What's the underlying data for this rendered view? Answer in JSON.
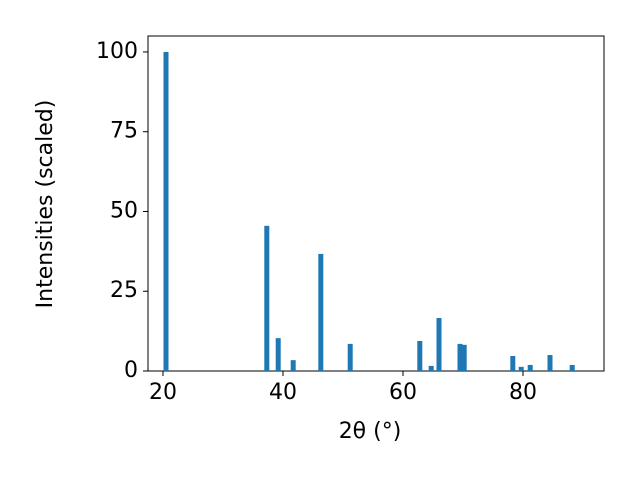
{
  "chart_data": {
    "type": "bar",
    "x_label": "2θ (°)",
    "y_label": "Intensities (scaled)",
    "x": [
      20.5,
      37.3,
      39.2,
      41.7,
      46.3,
      51.2,
      62.8,
      64.7,
      66.0,
      69.5,
      70.2,
      78.3,
      79.7,
      81.2,
      84.5,
      88.2
    ],
    "values": [
      100,
      45.5,
      10.3,
      3.4,
      36.7,
      8.5,
      9.4,
      1.6,
      16.6,
      8.5,
      8.2,
      4.7,
      1.3,
      1.9,
      5.0,
      1.9
    ],
    "color": "#1f77b4",
    "xlim": [
      17.5,
      93.5
    ],
    "xticks": [
      20,
      40,
      60,
      80
    ],
    "ylim": [
      0,
      105
    ],
    "yticks": [
      0,
      25,
      50,
      75,
      100
    ]
  }
}
